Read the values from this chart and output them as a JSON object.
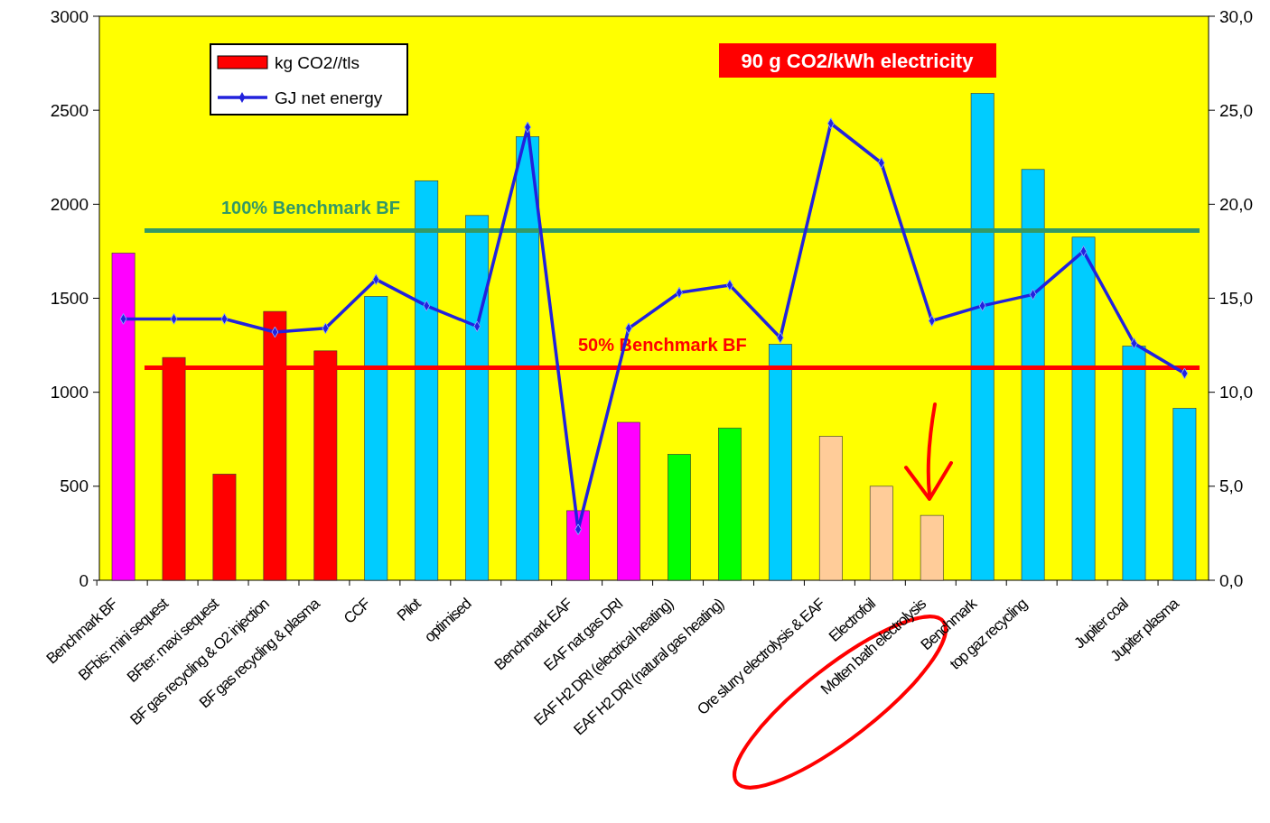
{
  "chart_data": {
    "type": "bar",
    "categories": [
      "Benchmark BF",
      "BFbis: mini sequest",
      "BFter: maxi sequest",
      "BF gas recycling & O2 injection",
      "BF gas recycling & plasma",
      "CCF",
      "Pilot",
      "optimised",
      null,
      "Benchmark EAF",
      "EAF nat gas DRI",
      "EAF H2 DRI (electrical heating)",
      "EAF H2 DRI (natural gas heating)",
      null,
      "Ore slurry electrolysis & EAF",
      "Electrofoil",
      "Molten bath electrolysis",
      "Benchmark",
      "top gaz recycling",
      null,
      "Jupiter coal",
      "Jupiter plasma"
    ],
    "series": [
      {
        "name": "kg CO2//tls",
        "color": "#ff0000",
        "colors": [
          "#ff00ff",
          "#ff0000",
          "#ff0000",
          "#ff0000",
          "#ff0000",
          "#00ccff",
          "#00ccff",
          "#00ccff",
          "#00ccff",
          "#ff00ff",
          "#ff00ff",
          "#00ff00",
          "#00ff00",
          "#00ccff",
          "#ffcc99",
          "#ffcc99",
          "#ffcc99",
          "#00ccff",
          "#00ccff",
          "#00ccff",
          "#00ccff",
          "#00ccff"
        ],
        "values": [
          1740,
          1185,
          565,
          1430,
          1220,
          1510,
          2125,
          1940,
          2360,
          370,
          840,
          670,
          810,
          1255,
          765,
          500,
          345,
          2590,
          2185,
          1825,
          1245,
          915
        ]
      },
      {
        "name": "GJ net energy",
        "type": "line",
        "axis": "y2",
        "color": "#2222dd",
        "marker": "diamond",
        "values": [
          13.9,
          13.9,
          13.9,
          13.2,
          13.4,
          16.0,
          14.6,
          13.5,
          24.1,
          2.7,
          13.4,
          15.3,
          15.7,
          12.9,
          24.3,
          22.2,
          13.8,
          14.6,
          15.2,
          17.5,
          12.6,
          11.0
        ]
      }
    ],
    "ylim": [
      0,
      3000
    ],
    "yticks": [
      0,
      500,
      1000,
      1500,
      2000,
      2500,
      3000
    ],
    "y2lim": [
      0,
      30
    ],
    "y2ticks": [
      {
        "value": 0,
        "label": "0,0"
      },
      {
        "value": 5,
        "label": "5,0"
      },
      {
        "value": 10,
        "label": "10,0"
      },
      {
        "value": 15,
        "label": "15,0"
      },
      {
        "value": 20,
        "label": "20,0"
      },
      {
        "value": 25,
        "label": "25,0"
      },
      {
        "value": 30,
        "label": "30,0"
      }
    ],
    "ref_lines": [
      {
        "axis": "y",
        "value": 1860,
        "label": "100% Benchmark BF",
        "color": "#339966"
      },
      {
        "axis": "y",
        "value": 1130,
        "label": "50% Benchmark BF",
        "color": "#ff0000"
      }
    ],
    "annotations": [
      "90 g CO2/kWh electricity"
    ],
    "legend": "top left",
    "grid": false
  }
}
